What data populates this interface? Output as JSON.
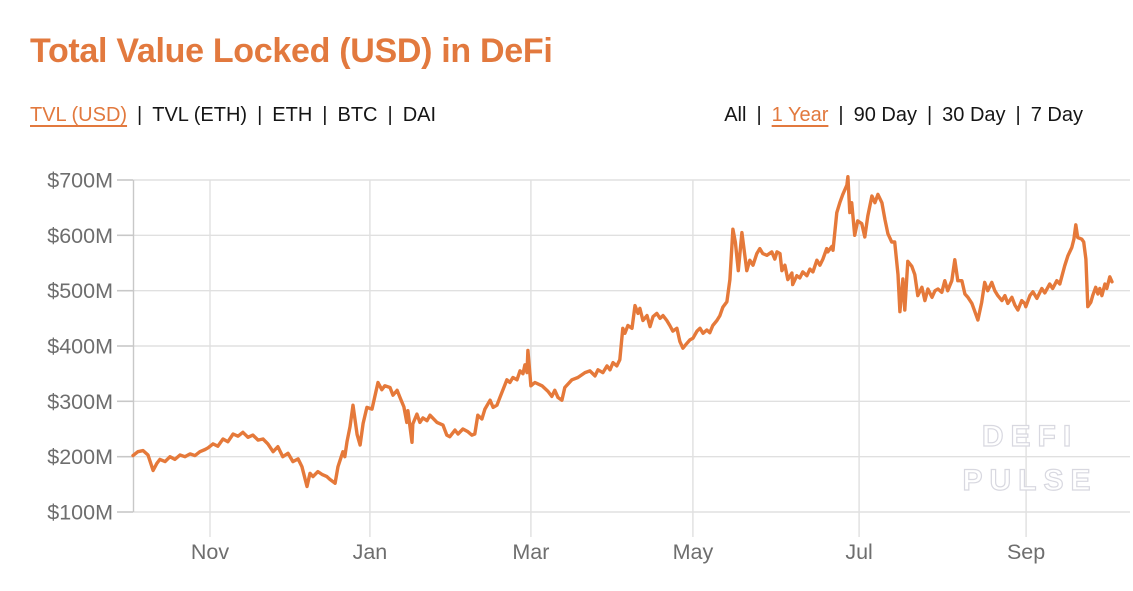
{
  "header": {
    "title": "Total Value Locked (USD) in DeFi"
  },
  "metric_tabs": {
    "separator": "|",
    "items": [
      {
        "label": "TVL (USD)",
        "active": true
      },
      {
        "label": "TVL (ETH)",
        "active": false
      },
      {
        "label": "ETH",
        "active": false
      },
      {
        "label": "BTC",
        "active": false
      },
      {
        "label": "DAI",
        "active": false
      }
    ]
  },
  "range_tabs": {
    "separator": "|",
    "items": [
      {
        "label": "All",
        "active": false
      },
      {
        "label": "1 Year",
        "active": true
      },
      {
        "label": "90 Day",
        "active": false
      },
      {
        "label": "30 Day",
        "active": false
      },
      {
        "label": "7 Day",
        "active": false
      }
    ]
  },
  "watermark": {
    "line1": "DEFI",
    "line2": "PULSE"
  },
  "colors": {
    "accent": "#e2793e",
    "text": "#151515",
    "axis_text": "#6e6e6e",
    "grid": "#e0e0e0",
    "axis_line": "#c8c8c8",
    "watermark_stroke": "#d8d8e0"
  },
  "chart_data": {
    "type": "line",
    "title": "Total Value Locked (USD) in DeFi",
    "selected_metric": "TVL (USD)",
    "selected_range": "1 Year",
    "unit": "USD millions",
    "grid": true,
    "ylim": [
      100,
      700
    ],
    "x_span_days": 360,
    "y_ticks": [
      {
        "value": 700,
        "label": "$700M"
      },
      {
        "value": 600,
        "label": "$600M"
      },
      {
        "value": 500,
        "label": "$500M"
      },
      {
        "value": 400,
        "label": "$400M"
      },
      {
        "value": 300,
        "label": "$300M"
      },
      {
        "value": 200,
        "label": "$200M"
      },
      {
        "value": 100,
        "label": "$100M"
      }
    ],
    "x_ticks": [
      {
        "label": "Nov",
        "day": 28.3
      },
      {
        "label": "Jan",
        "day": 87.1
      },
      {
        "label": "Mar",
        "day": 146.3
      },
      {
        "label": "May",
        "day": 205.9
      },
      {
        "label": "Jul",
        "day": 267.0
      },
      {
        "label": "Sep",
        "day": 328.4
      }
    ],
    "series": [
      {
        "name": "TVL (USD)",
        "color": "#e5793a",
        "points": [
          [
            0,
            202
          ],
          [
            1.8,
            209
          ],
          [
            3.7,
            211
          ],
          [
            5.5,
            203
          ],
          [
            7.4,
            175
          ],
          [
            8.8,
            188
          ],
          [
            9.9,
            195
          ],
          [
            11.8,
            191
          ],
          [
            13.6,
            200
          ],
          [
            15.4,
            195
          ],
          [
            17.3,
            203
          ],
          [
            19.1,
            200
          ],
          [
            21,
            205
          ],
          [
            22.8,
            202
          ],
          [
            24.6,
            209
          ],
          [
            26.5,
            213
          ],
          [
            27.6,
            216
          ],
          [
            29.4,
            223
          ],
          [
            31.2,
            219
          ],
          [
            33.1,
            232
          ],
          [
            34.9,
            227
          ],
          [
            36.8,
            241
          ],
          [
            38.6,
            237
          ],
          [
            40.4,
            244
          ],
          [
            42.3,
            235
          ],
          [
            44.1,
            239
          ],
          [
            46,
            230
          ],
          [
            47.8,
            232
          ],
          [
            49.6,
            223
          ],
          [
            51.5,
            209
          ],
          [
            53.3,
            218
          ],
          [
            55.1,
            200
          ],
          [
            57,
            206
          ],
          [
            58.8,
            191
          ],
          [
            60.7,
            196
          ],
          [
            62.1,
            182
          ],
          [
            64,
            146
          ],
          [
            65.1,
            170
          ],
          [
            66.2,
            164
          ],
          [
            68,
            173
          ],
          [
            69.5,
            168
          ],
          [
            71.3,
            164
          ],
          [
            72.4,
            159
          ],
          [
            74.3,
            152
          ],
          [
            75.4,
            182
          ],
          [
            77.2,
            209
          ],
          [
            77.9,
            200
          ],
          [
            78.7,
            227
          ],
          [
            79.8,
            254
          ],
          [
            80.9,
            293
          ],
          [
            82.4,
            240
          ],
          [
            83.5,
            221
          ],
          [
            84.6,
            260
          ],
          [
            86,
            289
          ],
          [
            87.9,
            286
          ],
          [
            89,
            310
          ],
          [
            90.1,
            334
          ],
          [
            91.5,
            321
          ],
          [
            92.6,
            328
          ],
          [
            94.5,
            325
          ],
          [
            95.6,
            311
          ],
          [
            97.1,
            320
          ],
          [
            98.2,
            307
          ],
          [
            99.6,
            290
          ],
          [
            100.7,
            262
          ],
          [
            101.1,
            283
          ],
          [
            102.6,
            226
          ],
          [
            102.9,
            259
          ],
          [
            104.4,
            277
          ],
          [
            105.5,
            262
          ],
          [
            106.6,
            270
          ],
          [
            108.1,
            265
          ],
          [
            109.2,
            275
          ],
          [
            111.8,
            262
          ],
          [
            114,
            257
          ],
          [
            115.4,
            239
          ],
          [
            116.5,
            236
          ],
          [
            118.4,
            248
          ],
          [
            119.5,
            241
          ],
          [
            121.3,
            250
          ],
          [
            123.2,
            245
          ],
          [
            124.6,
            239
          ],
          [
            125.7,
            241
          ],
          [
            126.8,
            275
          ],
          [
            128.3,
            268
          ],
          [
            129.4,
            286
          ],
          [
            131.3,
            302
          ],
          [
            132.4,
            289
          ],
          [
            133.8,
            293
          ],
          [
            134.9,
            307
          ],
          [
            137.5,
            339
          ],
          [
            138.6,
            334
          ],
          [
            139.7,
            343
          ],
          [
            141.2,
            339
          ],
          [
            142.3,
            355
          ],
          [
            143.4,
            350
          ],
          [
            144.1,
            366
          ],
          [
            144.9,
            352
          ],
          [
            145.2,
            392
          ],
          [
            146,
            348
          ],
          [
            146.3,
            328
          ],
          [
            147.8,
            334
          ],
          [
            150.4,
            328
          ],
          [
            152.6,
            318
          ],
          [
            154,
            309
          ],
          [
            155.1,
            320
          ],
          [
            156.3,
            307
          ],
          [
            157.7,
            302
          ],
          [
            158.8,
            325
          ],
          [
            161.4,
            339
          ],
          [
            163.6,
            343
          ],
          [
            166.2,
            352
          ],
          [
            168,
            355
          ],
          [
            169.9,
            346
          ],
          [
            171,
            357
          ],
          [
            172.8,
            352
          ],
          [
            174.3,
            364
          ],
          [
            175.4,
            357
          ],
          [
            176.5,
            370
          ],
          [
            177.9,
            364
          ],
          [
            179,
            375
          ],
          [
            180.1,
            432
          ],
          [
            180.9,
            423
          ],
          [
            182,
            437
          ],
          [
            183.5,
            432
          ],
          [
            184.6,
            473
          ],
          [
            185.7,
            459
          ],
          [
            186.4,
            468
          ],
          [
            187.5,
            446
          ],
          [
            189,
            455
          ],
          [
            190.1,
            435
          ],
          [
            191.2,
            453
          ],
          [
            192.6,
            459
          ],
          [
            193.8,
            450
          ],
          [
            194.9,
            455
          ],
          [
            196.3,
            446
          ],
          [
            197.4,
            437
          ],
          [
            198.5,
            427
          ],
          [
            200,
            432
          ],
          [
            201.1,
            408
          ],
          [
            202.2,
            396
          ],
          [
            203.7,
            405
          ],
          [
            204.8,
            411
          ],
          [
            205.9,
            414
          ],
          [
            207.4,
            427
          ],
          [
            208.5,
            432
          ],
          [
            209.6,
            423
          ],
          [
            211,
            429
          ],
          [
            212.1,
            424
          ],
          [
            213.2,
            437
          ],
          [
            214.7,
            446
          ],
          [
            215.8,
            455
          ],
          [
            216.9,
            470
          ],
          [
            218.4,
            480
          ],
          [
            219.5,
            520
          ],
          [
            220.6,
            611
          ],
          [
            221.5,
            587
          ],
          [
            222.6,
            536
          ],
          [
            223.9,
            605
          ],
          [
            225.7,
            536
          ],
          [
            226.8,
            555
          ],
          [
            228,
            546
          ],
          [
            229.4,
            567
          ],
          [
            230.5,
            576
          ],
          [
            231.6,
            567
          ],
          [
            233.1,
            564
          ],
          [
            234.9,
            570
          ],
          [
            236,
            557
          ],
          [
            236.8,
            570
          ],
          [
            237.9,
            567
          ],
          [
            238.6,
            536
          ],
          [
            239.7,
            546
          ],
          [
            240.8,
            520
          ],
          [
            242.3,
            532
          ],
          [
            242.6,
            511
          ],
          [
            244.1,
            527
          ],
          [
            245.2,
            523
          ],
          [
            246.3,
            534
          ],
          [
            247.8,
            527
          ],
          [
            248.9,
            539
          ],
          [
            250,
            534
          ],
          [
            251.5,
            555
          ],
          [
            252.6,
            546
          ],
          [
            253.7,
            557
          ],
          [
            255.1,
            576
          ],
          [
            255.5,
            570
          ],
          [
            257,
            580
          ],
          [
            257.4,
            573
          ],
          [
            258.8,
            641
          ],
          [
            259.9,
            659
          ],
          [
            261,
            674
          ],
          [
            262.5,
            691
          ],
          [
            262.9,
            706
          ],
          [
            263.6,
            641
          ],
          [
            264.3,
            659
          ],
          [
            265.4,
            600
          ],
          [
            266.5,
            626
          ],
          [
            268,
            621
          ],
          [
            269.1,
            597
          ],
          [
            270.2,
            635
          ],
          [
            271.7,
            671
          ],
          [
            272.8,
            659
          ],
          [
            273.9,
            674
          ],
          [
            275.4,
            659
          ],
          [
            276.5,
            629
          ],
          [
            277.6,
            603
          ],
          [
            279,
            588
          ],
          [
            280.1,
            588
          ],
          [
            281.3,
            529
          ],
          [
            282,
            462
          ],
          [
            283.1,
            521
          ],
          [
            283.8,
            465
          ],
          [
            284.9,
            553
          ],
          [
            286.4,
            544
          ],
          [
            287.5,
            529
          ],
          [
            288.6,
            491
          ],
          [
            290.1,
            506
          ],
          [
            291.2,
            482
          ],
          [
            292.3,
            503
          ],
          [
            293.8,
            488
          ],
          [
            294.9,
            500
          ],
          [
            296,
            503
          ],
          [
            297.4,
            497
          ],
          [
            298.5,
            518
          ],
          [
            299.6,
            500
          ],
          [
            301.1,
            518
          ],
          [
            302.2,
            556
          ],
          [
            303.3,
            518
          ],
          [
            304.8,
            518
          ],
          [
            305.9,
            494
          ],
          [
            307,
            488
          ],
          [
            308.5,
            477
          ],
          [
            309.6,
            462
          ],
          [
            310.7,
            447
          ],
          [
            312.1,
            479
          ],
          [
            313.2,
            515
          ],
          [
            314.3,
            500
          ],
          [
            315.8,
            515
          ],
          [
            316.9,
            500
          ],
          [
            318,
            491
          ],
          [
            319.5,
            482
          ],
          [
            320.6,
            491
          ],
          [
            321.7,
            477
          ],
          [
            323.2,
            488
          ],
          [
            324.3,
            474
          ],
          [
            325.4,
            465
          ],
          [
            326.8,
            482
          ],
          [
            327.9,
            477
          ],
          [
            328.3,
            471
          ],
          [
            329.8,
            491
          ],
          [
            330.9,
            498
          ],
          [
            332.4,
            486
          ],
          [
            334.2,
            504
          ],
          [
            335.3,
            496
          ],
          [
            337.1,
            512
          ],
          [
            338.2,
            504
          ],
          [
            339.7,
            518
          ],
          [
            340.8,
            512
          ],
          [
            342.6,
            545
          ],
          [
            343.8,
            563
          ],
          [
            345.2,
            578
          ],
          [
            346,
            593
          ],
          [
            346.7,
            619
          ],
          [
            347.4,
            596
          ],
          [
            348.9,
            593
          ],
          [
            349.6,
            588
          ],
          [
            350.4,
            557
          ],
          [
            351.1,
            471
          ],
          [
            352.2,
            479
          ],
          [
            352.9,
            491
          ],
          [
            354,
            506
          ],
          [
            354.8,
            494
          ],
          [
            355.5,
            504
          ],
          [
            356.3,
            491
          ],
          [
            357.4,
            512
          ],
          [
            358.1,
            504
          ],
          [
            359.2,
            525
          ],
          [
            360,
            516
          ]
        ]
      }
    ]
  }
}
